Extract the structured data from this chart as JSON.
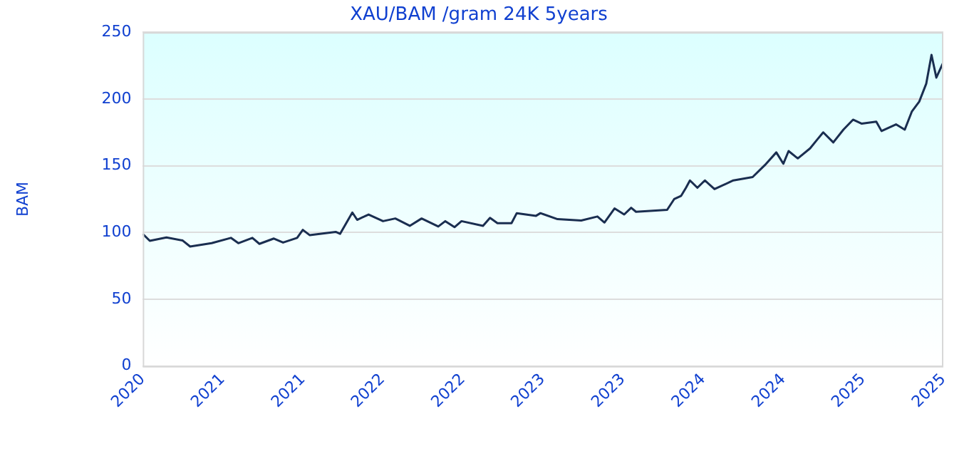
{
  "chart_data": {
    "type": "line",
    "title": "XAU/BAM /gram 24K 5years",
    "ylabel": "BAM",
    "x": [
      "2020-10-20",
      "2020-11-05",
      "2020-12-13",
      "2021-01-19",
      "2021-02-05",
      "2021-03-26",
      "2021-05-09",
      "2021-05-26",
      "2021-06-27",
      "2021-07-13",
      "2021-08-15",
      "2021-09-05",
      "2021-10-07",
      "2021-10-20",
      "2021-11-05",
      "2022-01-03",
      "2022-01-13",
      "2022-02-10",
      "2022-02-21",
      "2022-03-19",
      "2022-04-21",
      "2022-05-19",
      "2022-06-21",
      "2022-07-18",
      "2022-08-25",
      "2022-09-10",
      "2022-10-01",
      "2022-10-17",
      "2022-12-05",
      "2022-12-21",
      "2023-01-07",
      "2023-02-08",
      "2023-02-20",
      "2023-04-05",
      "2023-04-15",
      "2023-05-24",
      "2023-07-17",
      "2023-08-23",
      "2023-09-08",
      "2023-10-01",
      "2023-10-23",
      "2023-11-08",
      "2023-11-19",
      "2024-01-29",
      "2024-02-14",
      "2024-03-01",
      "2024-03-12",
      "2024-03-21",
      "2024-04-07",
      "2024-04-24",
      "2024-05-16",
      "2024-06-28",
      "2024-08-11",
      "2024-09-08",
      "2024-10-04",
      "2024-10-20",
      "2024-11-01",
      "2024-11-22",
      "2024-12-20",
      "2025-01-05",
      "2025-01-19",
      "2025-02-11",
      "2025-03-06",
      "2025-03-28",
      "2025-04-17",
      "2025-05-20",
      "2025-06-01",
      "2025-07-04",
      "2025-07-24",
      "2025-08-09",
      "2025-08-26",
      "2025-09-11",
      "2025-09-23",
      "2025-10-04",
      "2025-10-20"
    ],
    "series": [
      {
        "color": "#1a2e50",
        "values": [
          99,
          93.8,
          96.3,
          94,
          89.5,
          92,
          96,
          92,
          96,
          91.5,
          95.5,
          92.5,
          96,
          102,
          98,
          100.5,
          99,
          115,
          109.5,
          113.5,
          108.5,
          110.5,
          105,
          110.5,
          104.5,
          108.5,
          104,
          108.5,
          105,
          111,
          107,
          107,
          114.5,
          112.5,
          114.5,
          110,
          109,
          112,
          107.5,
          118,
          113.5,
          118.5,
          115.5,
          117,
          125,
          127.5,
          133.5,
          139,
          133.5,
          139,
          132.5,
          139,
          141.5,
          150.5,
          160,
          151.5,
          161,
          155.5,
          163,
          169.5,
          175,
          167.5,
          177,
          184.5,
          181.5,
          183,
          176,
          181,
          177,
          190.5,
          198,
          211.5,
          233,
          216,
          227.5
        ]
      }
    ],
    "xlim": [
      "2020-10-20",
      "2025-10-20"
    ],
    "xticks": [
      {
        "value": "2020-10-20",
        "label": "2020"
      },
      {
        "value": "2021-04-20",
        "label": "2021"
      },
      {
        "value": "2021-10-20",
        "label": "2021"
      },
      {
        "value": "2022-04-20",
        "label": "2022"
      },
      {
        "value": "2022-10-20",
        "label": "2022"
      },
      {
        "value": "2023-04-20",
        "label": "2023"
      },
      {
        "value": "2023-10-20",
        "label": "2023"
      },
      {
        "value": "2024-04-20",
        "label": "2024"
      },
      {
        "value": "2024-10-20",
        "label": "2024"
      },
      {
        "value": "2025-04-20",
        "label": "2025"
      },
      {
        "value": "2025-10-20",
        "label": "2025"
      }
    ],
    "ylim": [
      0,
      250
    ],
    "yticks": [
      0,
      50,
      100,
      150,
      200,
      250
    ],
    "grid": "y",
    "legend": false,
    "marker": "none",
    "line_style": "solid"
  }
}
